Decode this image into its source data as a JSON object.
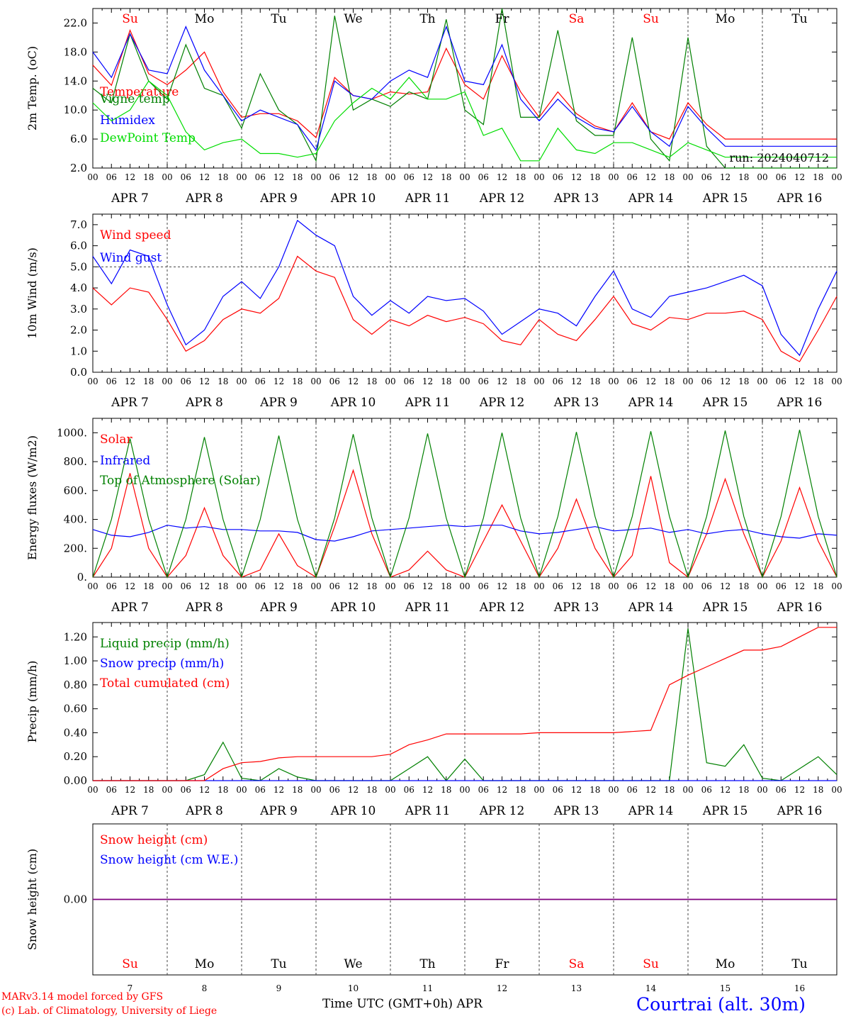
{
  "footer": {
    "model": "MARv3.14 model forced by GFS",
    "lab": "(c) Lab. of Climatology, University of Liege",
    "xlabel": "Time UTC (GMT+0h) APR",
    "station": "Courtrai (alt. 30m)"
  },
  "days": {
    "dates": [
      "APR  7",
      "APR  8",
      "APR  9",
      "APR 10",
      "APR 11",
      "APR 12",
      "APR 13",
      "APR 14",
      "APR 15",
      "APR 16"
    ],
    "short": [
      "Su",
      "Mo",
      "Tu",
      "We",
      "Th",
      "Fr",
      "Sa",
      "Su",
      "Mo",
      "Tu"
    ],
    "numbers": [
      "7",
      "8",
      "9",
      "10",
      "11",
      "12",
      "13",
      "14",
      "15",
      "16"
    ],
    "weekend_color": "#ff0000",
    "weekday_color": "#000000"
  },
  "hour_ticks": [
    "00",
    "06",
    "12",
    "18"
  ],
  "chart_data": [
    {
      "type": "line",
      "ylabel": "2m Temp. (oC)",
      "ylim": [
        2,
        24
      ],
      "yticks": [
        "2.0",
        "6.0",
        "10.0",
        "14.0",
        "18.0",
        "22.0"
      ],
      "annotation": "run: 2024040712",
      "x_hours": [
        0,
        6,
        12,
        18,
        24,
        30,
        36,
        42,
        48,
        54,
        60,
        66,
        72,
        78,
        84,
        90,
        96,
        102,
        108,
        114,
        120,
        126,
        132,
        138,
        144,
        150,
        156,
        162,
        168,
        174,
        180,
        186,
        192,
        198,
        204,
        210,
        216,
        222,
        228,
        234,
        240
      ],
      "series": [
        {
          "name": "Temperature",
          "color": "#ff0000",
          "values": [
            16.2,
            13.4,
            21.0,
            15.0,
            13.5,
            15.5,
            18.0,
            12.5,
            9.0,
            9.5,
            9.5,
            8.5,
            6.2,
            14.5,
            12.0,
            11.5,
            12.5,
            12.2,
            12.5,
            18.5,
            13.5,
            11.5,
            17.5,
            12.5,
            9.0,
            12.5,
            9.5,
            7.8,
            7.0,
            11.0,
            7.0,
            6.0,
            11.0,
            8.0,
            6.0,
            6.0,
            6.0,
            6.0,
            6.0,
            6.0,
            6.0
          ]
        },
        {
          "name": "Vigne temp",
          "color": "#008000",
          "values": [
            13.0,
            11.0,
            20.5,
            14.0,
            11.5,
            19.0,
            13.0,
            12.0,
            7.5,
            15.0,
            10.0,
            8.0,
            3.0,
            23.0,
            10.0,
            11.5,
            10.5,
            12.5,
            11.5,
            22.5,
            10.0,
            8.0,
            24.0,
            9.0,
            9.0,
            21.0,
            8.5,
            6.5,
            6.5,
            20.0,
            6.0,
            3.0,
            20.0,
            5.0,
            2.0,
            2.0,
            2.0,
            2.0,
            2.0,
            2.0,
            2.0
          ]
        },
        {
          "name": "Humidex",
          "color": "#0000ff",
          "values": [
            18.0,
            14.5,
            20.5,
            15.5,
            15.0,
            21.5,
            15.5,
            12.0,
            8.5,
            10.0,
            9.0,
            8.0,
            4.5,
            14.0,
            12.0,
            11.5,
            14.0,
            15.5,
            14.5,
            21.5,
            14.0,
            13.5,
            19.0,
            11.5,
            8.5,
            11.5,
            9.0,
            7.5,
            7.0,
            10.5,
            7.0,
            5.0,
            10.5,
            7.5,
            5.0,
            5.0,
            5.0,
            5.0,
            5.0,
            5.0,
            5.0
          ]
        },
        {
          "name": "DewPoint Temp",
          "color": "#00dd00",
          "values": [
            11.0,
            8.5,
            10.0,
            14.0,
            12.0,
            7.0,
            4.5,
            5.5,
            6.0,
            4.0,
            4.0,
            3.5,
            4.0,
            8.5,
            11.0,
            13.0,
            11.5,
            14.5,
            11.5,
            11.5,
            12.5,
            6.5,
            7.5,
            3.0,
            3.0,
            7.5,
            4.5,
            4.0,
            5.5,
            5.5,
            4.5,
            3.5,
            5.5,
            4.5,
            3.5,
            3.5,
            3.5,
            3.5,
            3.5,
            3.5,
            3.5
          ]
        }
      ]
    },
    {
      "type": "line",
      "ylabel": "10m Wind (m/s)",
      "ylim": [
        0,
        7.5
      ],
      "yticks": [
        "0.0",
        "1.0",
        "2.0",
        "3.0",
        "4.0",
        "5.0",
        "6.0",
        "7.0"
      ],
      "reference_line": 5.0,
      "x_hours": [
        0,
        6,
        12,
        18,
        24,
        30,
        36,
        42,
        48,
        54,
        60,
        66,
        72,
        78,
        84,
        90,
        96,
        102,
        108,
        114,
        120,
        126,
        132,
        138,
        144,
        150,
        156,
        162,
        168,
        174,
        180,
        186,
        192,
        198,
        204,
        210,
        216,
        222,
        228,
        234,
        240
      ],
      "series": [
        {
          "name": "Wind speed",
          "color": "#ff0000",
          "values": [
            4.0,
            3.2,
            4.0,
            3.8,
            2.5,
            1.0,
            1.5,
            2.5,
            3.0,
            2.8,
            3.5,
            5.5,
            4.8,
            4.5,
            2.5,
            1.8,
            2.5,
            2.2,
            2.7,
            2.4,
            2.6,
            2.3,
            1.5,
            1.3,
            2.5,
            1.8,
            1.5,
            2.5,
            3.6,
            2.3,
            2.0,
            2.6,
            2.5,
            2.8,
            2.8,
            2.9,
            2.5,
            1.0,
            0.5,
            2.0,
            3.6
          ]
        },
        {
          "name": "Wind gust",
          "color": "#0000ff",
          "values": [
            5.5,
            4.2,
            5.8,
            5.5,
            3.2,
            1.3,
            2.0,
            3.6,
            4.3,
            3.5,
            5.0,
            7.2,
            6.5,
            6.0,
            3.6,
            2.7,
            3.4,
            2.8,
            3.6,
            3.4,
            3.5,
            2.9,
            1.8,
            2.4,
            3.0,
            2.8,
            2.2,
            3.6,
            4.8,
            3.0,
            2.6,
            3.6,
            3.8,
            4.0,
            4.3,
            4.6,
            4.1,
            1.8,
            0.8,
            3.0,
            4.8
          ]
        }
      ]
    },
    {
      "type": "line",
      "ylabel": "Energy fluxes (W/m2)",
      "ylim": [
        0,
        1100
      ],
      "yticks": [
        "0.",
        "200.",
        "400.",
        "600.",
        "800.",
        "1000."
      ],
      "x_hours": [
        0,
        6,
        12,
        18,
        24,
        30,
        36,
        42,
        48,
        54,
        60,
        66,
        72,
        78,
        84,
        90,
        96,
        102,
        108,
        114,
        120,
        126,
        132,
        138,
        144,
        150,
        156,
        162,
        168,
        174,
        180,
        186,
        192,
        198,
        204,
        210,
        216,
        222,
        228,
        234,
        240
      ],
      "series": [
        {
          "name": "Solar",
          "color": "#ff0000",
          "values": [
            0,
            200,
            720,
            200,
            0,
            150,
            480,
            150,
            0,
            50,
            300,
            80,
            0,
            350,
            740,
            300,
            0,
            50,
            180,
            50,
            0,
            250,
            500,
            250,
            0,
            200,
            540,
            200,
            0,
            150,
            700,
            100,
            0,
            300,
            680,
            300,
            0,
            250,
            620,
            250,
            0
          ]
        },
        {
          "name": "Infrared",
          "color": "#0000ff",
          "values": [
            330,
            290,
            280,
            310,
            360,
            340,
            350,
            330,
            330,
            320,
            320,
            310,
            260,
            250,
            280,
            320,
            330,
            340,
            350,
            360,
            350,
            360,
            360,
            320,
            300,
            310,
            330,
            350,
            320,
            330,
            340,
            310,
            330,
            300,
            320,
            330,
            300,
            280,
            270,
            300,
            290
          ]
        },
        {
          "name": "Top of Atmosphere (Solar)",
          "color": "#008000",
          "values": [
            0,
            400,
            960,
            400,
            0,
            400,
            970,
            400,
            0,
            400,
            980,
            400,
            0,
            410,
            990,
            410,
            0,
            410,
            995,
            410,
            0,
            410,
            1000,
            410,
            0,
            420,
            1005,
            420,
            0,
            420,
            1010,
            420,
            0,
            420,
            1015,
            420,
            0,
            420,
            1020,
            420,
            0
          ]
        }
      ]
    },
    {
      "type": "line",
      "ylabel": "Precip (mm/h)",
      "ylim": [
        0,
        1.32
      ],
      "yticks": [
        "0.00",
        "0.20",
        "0.40",
        "0.60",
        "0.80",
        "1.00",
        "1.20"
      ],
      "x_hours": [
        0,
        6,
        12,
        18,
        24,
        30,
        36,
        42,
        48,
        54,
        60,
        66,
        72,
        78,
        84,
        90,
        96,
        102,
        108,
        114,
        120,
        126,
        132,
        138,
        144,
        150,
        156,
        162,
        168,
        174,
        180,
        186,
        192,
        198,
        204,
        210,
        216,
        222,
        228,
        234,
        240
      ],
      "series": [
        {
          "name": "Liquid precip (mm/h)",
          "color": "#008000",
          "values": [
            0,
            0,
            0,
            0,
            0,
            0,
            0.05,
            0.32,
            0.02,
            0,
            0.1,
            0.03,
            0,
            0,
            0,
            0,
            0,
            0.1,
            0.2,
            0,
            0.18,
            0,
            0,
            0,
            0,
            0,
            0,
            0,
            0,
            0,
            0,
            0,
            1.27,
            0.15,
            0.12,
            0.3,
            0.02,
            0,
            0.1,
            0.2,
            0.05
          ]
        },
        {
          "name": "Snow precip (mm/h)",
          "color": "#0000ff",
          "values": [
            0,
            0,
            0,
            0,
            0,
            0,
            0,
            0,
            0,
            0,
            0,
            0,
            0,
            0,
            0,
            0,
            0,
            0,
            0,
            0,
            0,
            0,
            0,
            0,
            0,
            0,
            0,
            0,
            0,
            0,
            0,
            0,
            0,
            0,
            0,
            0,
            0,
            0,
            0,
            0,
            0
          ]
        },
        {
          "name": "Total cumulated (cm)",
          "color": "#ff0000",
          "values": [
            0,
            0,
            0,
            0,
            0,
            0,
            0,
            0.1,
            0.15,
            0.16,
            0.19,
            0.2,
            0.2,
            0.2,
            0.2,
            0.2,
            0.22,
            0.3,
            0.34,
            0.39,
            0.39,
            0.39,
            0.39,
            0.39,
            0.4,
            0.4,
            0.4,
            0.4,
            0.4,
            0.41,
            0.42,
            0.8,
            0.88,
            0.95,
            1.02,
            1.09,
            1.09,
            1.12,
            1.2,
            1.28,
            1.28
          ]
        }
      ]
    },
    {
      "type": "line",
      "ylabel": "Snow height (cm)",
      "ylim": [
        -1,
        1
      ],
      "yticks": [
        "0.00"
      ],
      "series": [
        {
          "name": "Snow height (cm)",
          "color": "#ff0000",
          "values": [
            0,
            0
          ]
        },
        {
          "name": "Snow height (cm W.E.)",
          "color": "#0000ff",
          "values": [
            0,
            0
          ]
        }
      ]
    }
  ]
}
